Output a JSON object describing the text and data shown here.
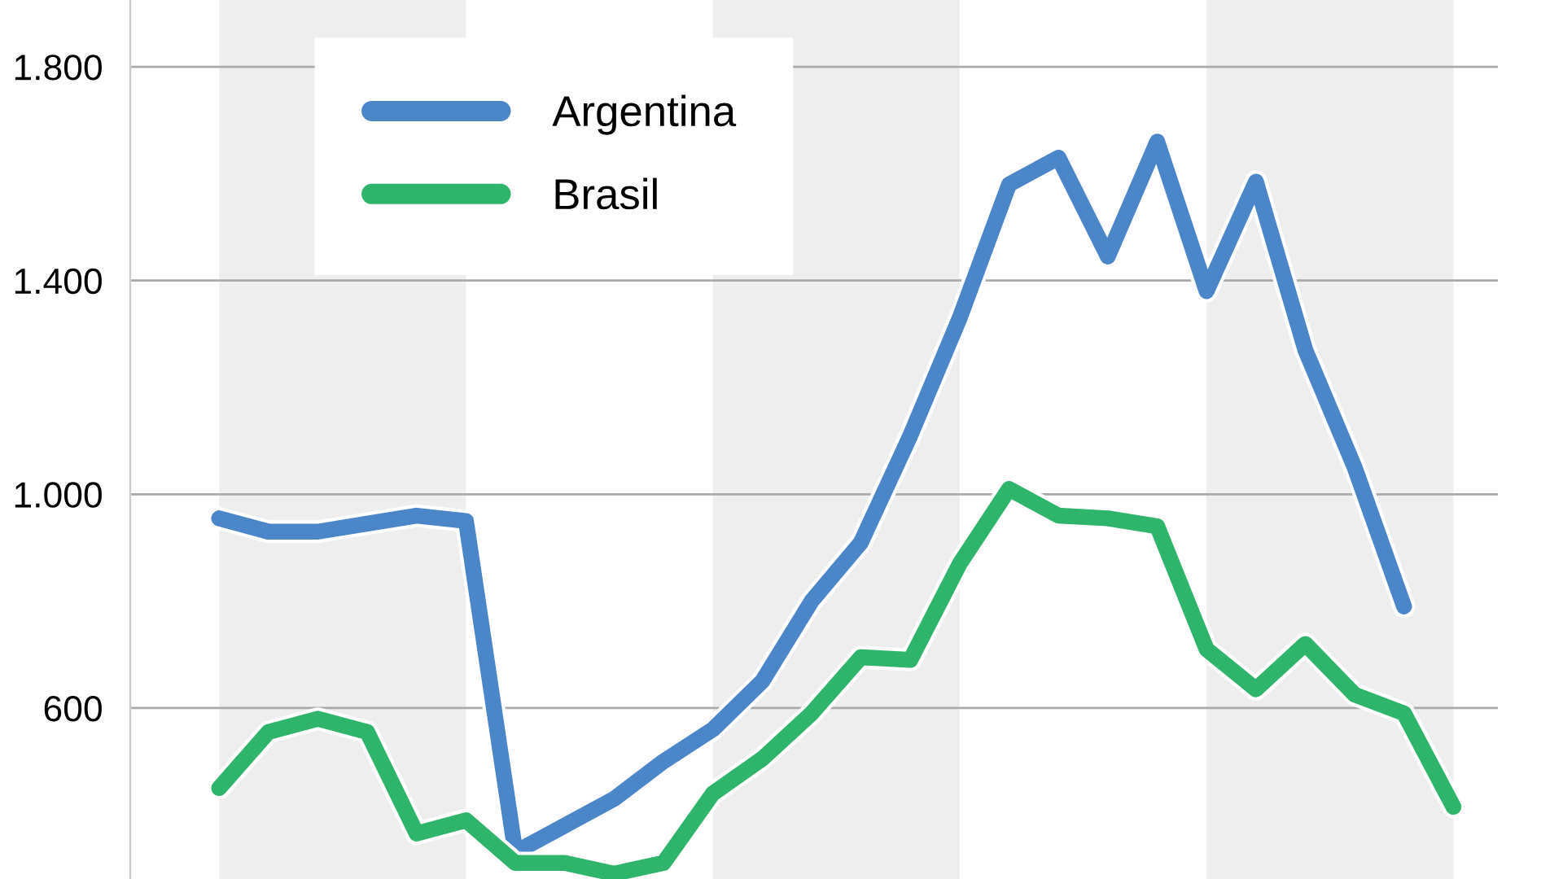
{
  "chart_data": {
    "type": "line",
    "categories": [
      null,
      null,
      null,
      null,
      null,
      null,
      null,
      null,
      null,
      null,
      null,
      null,
      null,
      null,
      null,
      null,
      null,
      null,
      null,
      null,
      null,
      null,
      null,
      null,
      null,
      null
    ],
    "series": [
      {
        "name": "Argentina",
        "color": "#4a86c8",
        "values": [
          955,
          930,
          930,
          945,
          960,
          950,
          330,
          380,
          430,
          500,
          560,
          650,
          800,
          910,
          1110,
          1330,
          1580,
          1630,
          1445,
          1660,
          1380,
          1585,
          1270,
          1050,
          790,
          null
        ]
      },
      {
        "name": "Brasil",
        "color": "#2fb56b",
        "values": [
          450,
          555,
          580,
          555,
          365,
          390,
          310,
          310,
          290,
          310,
          440,
          505,
          590,
          695,
          690,
          870,
          1010,
          960,
          955,
          940,
          710,
          635,
          720,
          625,
          590,
          415
        ]
      }
    ],
    "ylim": [
      280,
      1925
    ],
    "yticks": [
      600,
      {
        "value": 1000,
        "label": "1.000"
      },
      {
        "value": 1400,
        "label": "1.400"
      },
      {
        "value": 1800,
        "label": "1.800"
      }
    ],
    "grid": "y",
    "legend": "top left",
    "marker": "none",
    "line_style": "solid"
  }
}
